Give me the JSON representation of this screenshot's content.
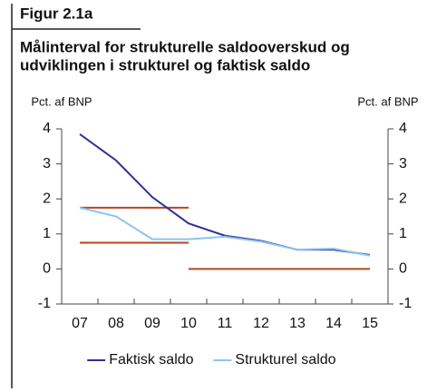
{
  "chart_data": {
    "type": "line",
    "figure_label": "Figur 2.1a",
    "title": [
      "Målinterval for strukturelle saldooverskud og",
      "udviklingen i strukturel og faktisk saldo"
    ],
    "ylabel": "Pct. af BNP",
    "y2label": "Pct. af BNP",
    "categories": [
      "07",
      "08",
      "09",
      "10",
      "11",
      "12",
      "13",
      "14",
      "15"
    ],
    "series": [
      {
        "name": "Faktisk saldo",
        "color": "#2e3192",
        "values": [
          3.85,
          3.1,
          2.05,
          1.3,
          0.95,
          0.8,
          0.55,
          0.55,
          0.4
        ]
      },
      {
        "name": "Strukturel saldo",
        "color": "#8cc4ee",
        "values": [
          1.75,
          1.5,
          0.85,
          0.85,
          0.92,
          0.78,
          0.55,
          0.58,
          0.38
        ]
      }
    ],
    "target_ranges": [
      {
        "from": "07",
        "to": "10",
        "values": [
          0.75,
          1.75
        ]
      },
      {
        "from": "10",
        "to": "15",
        "values": [
          0
        ]
      }
    ],
    "target_color": "#b5461c",
    "ylim": [
      -1,
      4
    ],
    "yticks": [
      -1,
      0,
      1,
      2,
      3,
      4
    ],
    "y2lim": [
      -1,
      4
    ],
    "y2ticks": [
      -1,
      0,
      1,
      2,
      3,
      4
    ],
    "legend": "bottom"
  }
}
